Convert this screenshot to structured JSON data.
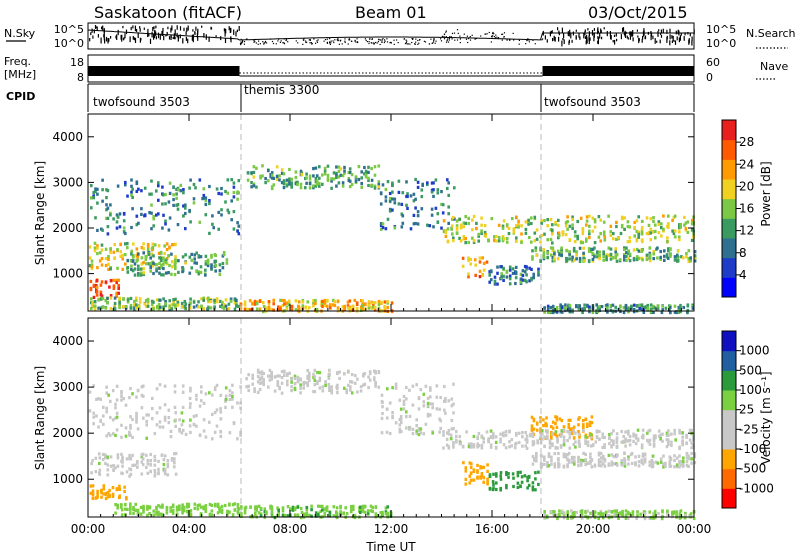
{
  "header": {
    "station": "Saskatoon (fitACF)",
    "beam": "Beam 01",
    "date": "03/Oct/2015"
  },
  "noise_panel": {
    "left_label": "N.Sky",
    "right_label": "N.Search",
    "left_ticks": [
      "10^5",
      "10^0"
    ],
    "right_ticks": [
      "10^5",
      "10^0"
    ]
  },
  "freq_panel": {
    "left_label_1": "Freq.",
    "left_label_2": "[MHz]",
    "right_label": "Nave",
    "left_ticks": [
      "18",
      "8"
    ],
    "right_ticks": [
      "60",
      "0"
    ]
  },
  "cpid": {
    "label": "CPID",
    "segments": [
      {
        "label": "twofsound 3503",
        "start_hour": 0,
        "end_hour": 6
      },
      {
        "label": "themis 3300",
        "start_hour": 6,
        "end_hour": 18
      },
      {
        "label": "twofsound 3503",
        "start_hour": 18,
        "end_hour": 24
      }
    ]
  },
  "colors": {
    "power": [
      "#0000ff",
      "#1e3cc8",
      "#2f6f8f",
      "#3a9a60",
      "#7ac843",
      "#f0d020",
      "#ff9a00",
      "#ff5a00",
      "#e82020"
    ],
    "velocity": [
      "#ff0000",
      "#ff6a00",
      "#ffa500",
      "#c8c8c8",
      "#c8c8c8",
      "#7ad040",
      "#2a9a3a",
      "#2060a0",
      "#1010c0"
    ],
    "grey": "#c8c8c8"
  },
  "chart_data": [
    {
      "type": "heatmap",
      "panel": "power",
      "ylabel": "Slant Range [km]",
      "xlabel": "Time UT",
      "xlim": [
        0,
        24
      ],
      "ylim": [
        180,
        4500
      ],
      "x_ticks": [
        "00:00",
        "04:00",
        "08:00",
        "12:00",
        "16:00",
        "20:00",
        "00:00"
      ],
      "y_ticks": [
        "1000",
        "2000",
        "3000",
        "4000"
      ],
      "colorbar": {
        "label": "Power [dB]",
        "ticks": [
          "4",
          "8",
          "12",
          "16",
          "20",
          "24",
          "28"
        ],
        "range": [
          0,
          30
        ]
      },
      "bands": [
        {
          "t0": 0.0,
          "t1": 6.0,
          "r0": 1900,
          "r1": 3100,
          "value": 10
        },
        {
          "t0": 0.0,
          "t1": 3.5,
          "r0": 1100,
          "r1": 1700,
          "value": 18
        },
        {
          "t0": 0.0,
          "t1": 1.2,
          "r0": 500,
          "r1": 900,
          "value": 26
        },
        {
          "t0": 1.5,
          "t1": 5.5,
          "r0": 1000,
          "r1": 1500,
          "value": 12
        },
        {
          "t0": 0.0,
          "t1": 6.0,
          "r0": 250,
          "r1": 500,
          "value": 14
        },
        {
          "t0": 6.2,
          "t1": 11.5,
          "r0": 2900,
          "r1": 3400,
          "value": 12
        },
        {
          "t0": 11.5,
          "t1": 14.5,
          "r0": 2000,
          "r1": 3100,
          "value": 9
        },
        {
          "t0": 6.0,
          "t1": 12.0,
          "r0": 200,
          "r1": 450,
          "value": 20
        },
        {
          "t0": 14.8,
          "t1": 15.8,
          "r0": 900,
          "r1": 1400,
          "value": 22
        },
        {
          "t0": 15.8,
          "t1": 17.8,
          "r0": 800,
          "r1": 1200,
          "value": 10
        },
        {
          "t0": 14.0,
          "t1": 24.0,
          "r0": 1700,
          "r1": 2300,
          "value": 16
        },
        {
          "t0": 17.5,
          "t1": 24.0,
          "r0": 1300,
          "r1": 1600,
          "value": 13
        },
        {
          "t0": 18.0,
          "t1": 24.0,
          "r0": 180,
          "r1": 350,
          "value": 11
        }
      ]
    },
    {
      "type": "heatmap",
      "panel": "velocity",
      "ylabel": "Slant Range [km]",
      "xlabel": "Time UT",
      "xlim": [
        0,
        24
      ],
      "ylim": [
        180,
        4500
      ],
      "x_ticks": [
        "00:00",
        "04:00",
        "08:00",
        "12:00",
        "16:00",
        "20:00",
        "00:00"
      ],
      "y_ticks": [
        "1000",
        "2000",
        "3000",
        "4000"
      ],
      "colorbar": {
        "label": "Velocity [m s⁻¹]",
        "ticks": [
          "1000",
          "500",
          "100",
          "25",
          "-25",
          "-100",
          "-500",
          "-1000"
        ]
      },
      "bands": [
        {
          "t0": 0.0,
          "t1": 6.0,
          "r0": 1900,
          "r1": 3100,
          "value": 0
        },
        {
          "t0": 0.0,
          "t1": 3.5,
          "r0": 1100,
          "r1": 1600,
          "value": 0
        },
        {
          "t0": 0.0,
          "t1": 1.5,
          "r0": 600,
          "r1": 900,
          "value": -300
        },
        {
          "t0": 1.0,
          "t1": 6.0,
          "r0": 250,
          "r1": 500,
          "value": 60
        },
        {
          "t0": 6.2,
          "t1": 11.5,
          "r0": 2900,
          "r1": 3400,
          "value": 0
        },
        {
          "t0": 11.5,
          "t1": 14.5,
          "r0": 2000,
          "r1": 3100,
          "value": 0
        },
        {
          "t0": 6.0,
          "t1": 12.0,
          "r0": 200,
          "r1": 450,
          "value": 80
        },
        {
          "t0": 14.8,
          "t1": 15.8,
          "r0": 900,
          "r1": 1400,
          "value": -150
        },
        {
          "t0": 15.8,
          "t1": 17.8,
          "r0": 800,
          "r1": 1200,
          "value": 150
        },
        {
          "t0": 17.5,
          "t1": 20.0,
          "r0": 1900,
          "r1": 2400,
          "value": -400
        },
        {
          "t0": 14.0,
          "t1": 24.0,
          "r0": 1700,
          "r1": 2100,
          "value": 0
        },
        {
          "t0": 17.5,
          "t1": 24.0,
          "r0": 1300,
          "r1": 1600,
          "value": 0
        },
        {
          "t0": 18.0,
          "t1": 24.0,
          "r0": 180,
          "r1": 350,
          "value": 40
        }
      ]
    }
  ]
}
